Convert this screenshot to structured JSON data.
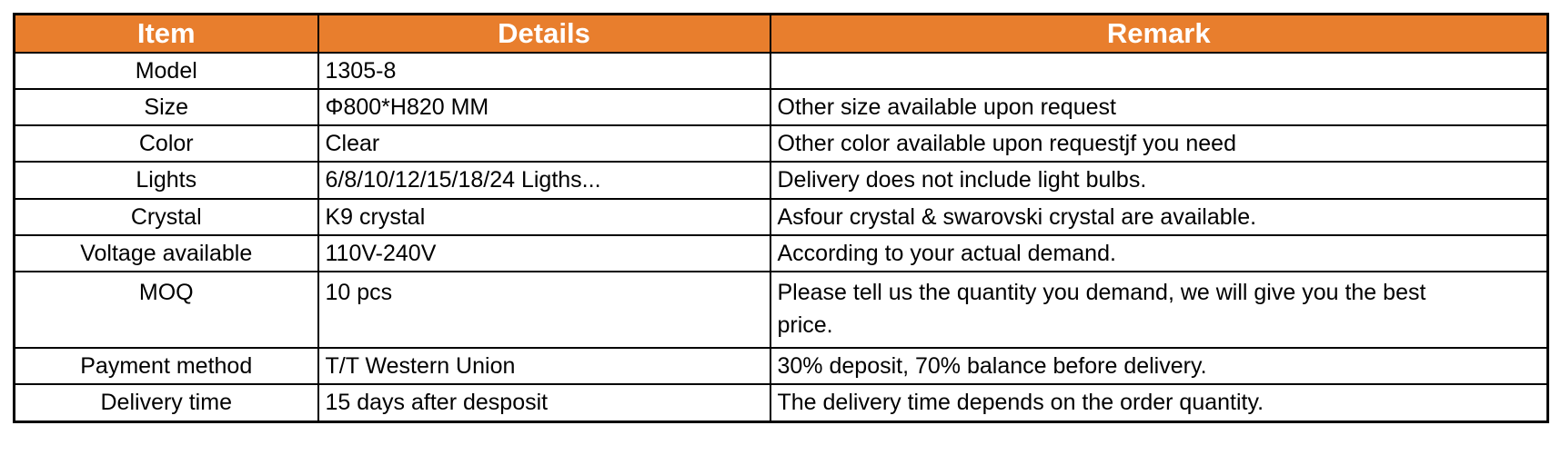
{
  "colors": {
    "header_bg": "#E87E2D",
    "header_text": "#FFFFFF",
    "border": "#000000",
    "body_text": "#000000"
  },
  "table": {
    "columns": [
      {
        "label": "Item"
      },
      {
        "label": "Details"
      },
      {
        "label": "Remark"
      }
    ],
    "rows": [
      {
        "item": "Model",
        "details": "1305-8",
        "remark": ""
      },
      {
        "item": "Size",
        "details": "Φ800*H820 MM",
        "remark": "Other size available upon request"
      },
      {
        "item": "Color",
        "details": "Clear",
        "remark": "Other color available upon requestjf you need"
      },
      {
        "item": "Lights",
        "details": "6/8/10/12/15/18/24 Ligths...",
        "remark": "Delivery does not include light bulbs."
      },
      {
        "item": "Crystal",
        "details": "K9 crystal",
        "remark": "Asfour crystal & swarovski crystal are available."
      },
      {
        "item": "Voltage available",
        "details": "110V-240V",
        "remark": "According to your actual demand."
      },
      {
        "item": "MOQ",
        "details": "10 pcs",
        "remark": "Please tell us the quantity you demand, we will give you the best price."
      },
      {
        "item": "Payment method",
        "details": "T/T Western Union",
        "remark": "30% deposit, 70% balance before delivery."
      },
      {
        "item": "Delivery time",
        "details": "15 days after desposit",
        "remark": "The delivery time depends on the order quantity."
      }
    ]
  }
}
